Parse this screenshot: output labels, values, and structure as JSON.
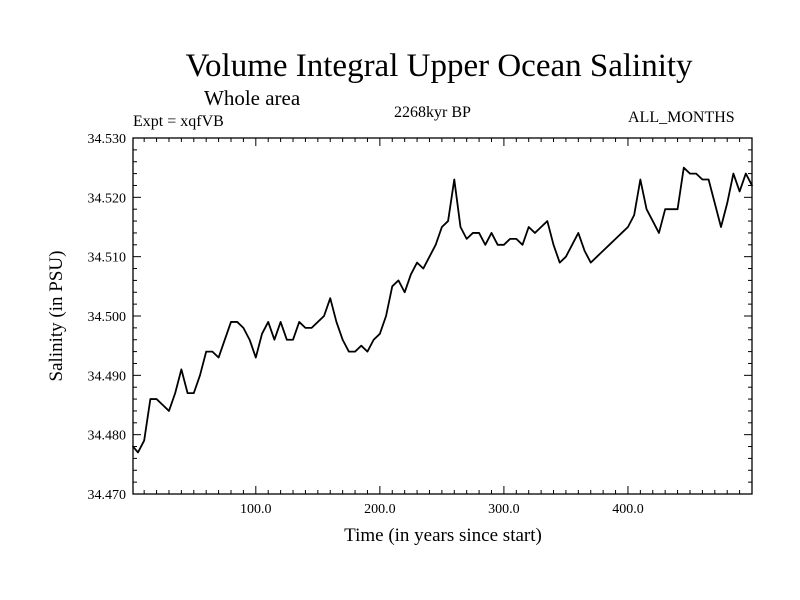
{
  "chart_data": {
    "type": "line",
    "title": "Volume Integral Upper Ocean Salinity",
    "subtitle": "Whole area",
    "experiment_label": "Expt = xqfVB",
    "period_label": "2268kyr BP",
    "months_label": "ALL_MONTHS",
    "xlabel": "Time (in years since start)",
    "ylabel": "Salinity (in PSU)",
    "xlim": [
      1,
      500
    ],
    "ylim": [
      34.47,
      34.53
    ],
    "x_ticks": [
      100,
      200,
      300,
      400
    ],
    "x_tick_labels": [
      "100.0",
      "200.0",
      "300.0",
      "400.0"
    ],
    "y_ticks": [
      34.47,
      34.48,
      34.49,
      34.5,
      34.51,
      34.52,
      34.53
    ],
    "y_tick_labels": [
      "34.470",
      "34.480",
      "34.490",
      "34.500",
      "34.510",
      "34.520",
      "34.530"
    ],
    "series": [
      {
        "name": "Salinity",
        "x": [
          1,
          5,
          10,
          15,
          20,
          25,
          30,
          35,
          40,
          45,
          50,
          55,
          60,
          65,
          70,
          75,
          80,
          85,
          90,
          95,
          100,
          105,
          110,
          115,
          120,
          125,
          130,
          135,
          140,
          145,
          150,
          155,
          160,
          165,
          170,
          175,
          180,
          185,
          190,
          195,
          200,
          205,
          210,
          215,
          220,
          225,
          230,
          235,
          240,
          245,
          250,
          255,
          260,
          265,
          270,
          275,
          280,
          285,
          290,
          295,
          300,
          305,
          310,
          315,
          320,
          325,
          330,
          335,
          340,
          345,
          350,
          355,
          360,
          365,
          370,
          375,
          380,
          385,
          390,
          395,
          400,
          405,
          410,
          415,
          420,
          425,
          430,
          435,
          440,
          445,
          450,
          455,
          460,
          465,
          470,
          475,
          480,
          485,
          490,
          495,
          500
        ],
        "values": [
          34.478,
          34.477,
          34.479,
          34.486,
          34.486,
          34.485,
          34.484,
          34.487,
          34.491,
          34.487,
          34.487,
          34.49,
          34.494,
          34.494,
          34.493,
          34.496,
          34.499,
          34.499,
          34.498,
          34.496,
          34.493,
          34.497,
          34.499,
          34.496,
          34.499,
          34.496,
          34.496,
          34.499,
          34.498,
          34.498,
          34.499,
          34.5,
          34.503,
          34.499,
          34.496,
          34.494,
          34.494,
          34.495,
          34.494,
          34.496,
          34.497,
          34.5,
          34.505,
          34.506,
          34.504,
          34.507,
          34.509,
          34.508,
          34.51,
          34.512,
          34.515,
          34.516,
          34.523,
          34.515,
          34.513,
          34.514,
          34.514,
          34.512,
          34.514,
          34.512,
          34.512,
          34.513,
          34.513,
          34.512,
          34.515,
          34.514,
          34.515,
          34.516,
          34.512,
          34.509,
          34.51,
          34.512,
          34.514,
          34.511,
          34.509,
          34.51,
          34.511,
          34.512,
          34.513,
          34.514,
          34.515,
          34.517,
          34.523,
          34.518,
          34.516,
          34.514,
          34.518,
          34.518,
          34.518,
          34.525,
          34.524,
          34.524,
          34.523,
          34.523,
          34.519,
          34.515,
          34.519,
          34.524,
          34.521,
          34.524,
          34.522
        ]
      }
    ]
  }
}
